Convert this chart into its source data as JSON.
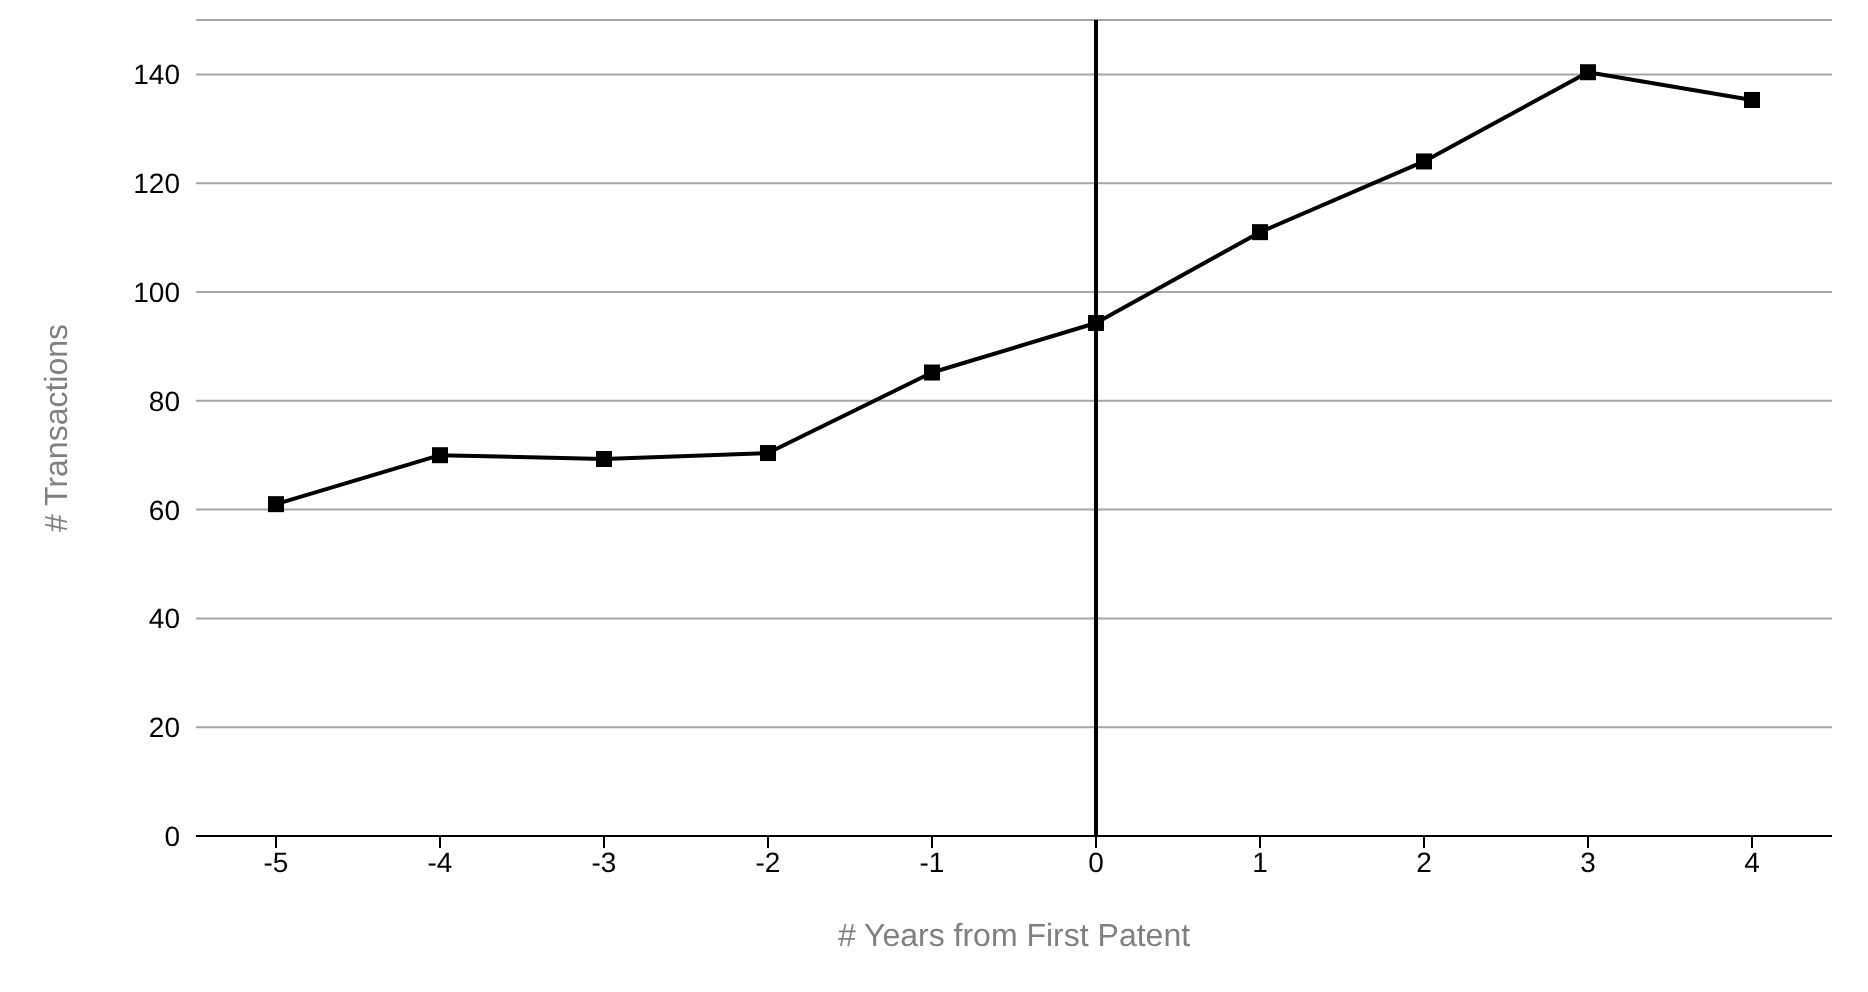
{
  "chart_data": {
    "type": "line",
    "xlabel": "# Years from First Patent",
    "ylabel": "# Transactions",
    "categories": [
      "-5",
      "-4",
      "-3",
      "-2",
      "-1",
      "0",
      "1",
      "2",
      "3",
      "4"
    ],
    "series": [
      {
        "color": "#000000",
        "values": [
          61,
          70,
          69.3,
          70.4,
          85.2,
          94.3,
          111,
          124,
          140.4,
          135.3
        ]
      }
    ],
    "ylim": [
      0,
      150
    ],
    "yticks": [
      0,
      20,
      40,
      60,
      80,
      100,
      120,
      140
    ],
    "grid": "y",
    "marker": "square",
    "line_style": "solid",
    "legend": false,
    "ref_lines": [
      {
        "axis": "x",
        "value": "0",
        "color": "#000000"
      }
    ]
  }
}
